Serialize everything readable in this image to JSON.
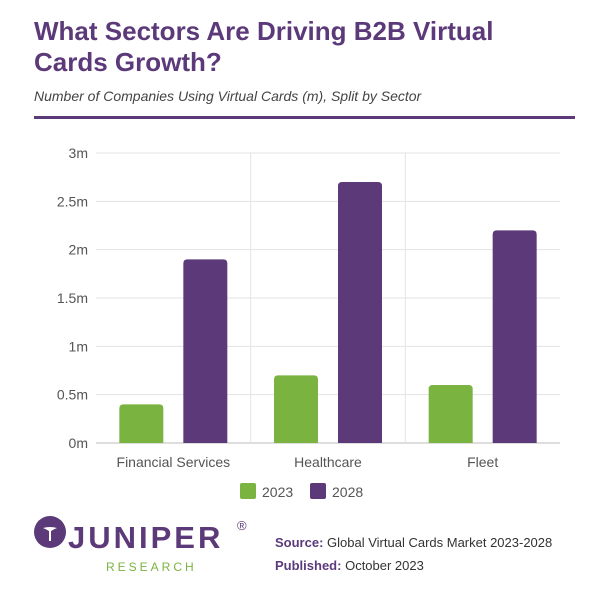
{
  "chart_data": {
    "type": "bar",
    "title": "What Sectors Are Driving B2B Virtual Cards Growth?",
    "subtitle": "Number of Companies Using Virtual Cards (m), Split by Sector",
    "categories": [
      "Financial Services",
      "Healthcare",
      "Fleet"
    ],
    "series": [
      {
        "name": "2023",
        "values": [
          0.4,
          0.7,
          0.6
        ],
        "color": "#7ab33f"
      },
      {
        "name": "2028",
        "values": [
          1.9,
          2.7,
          2.2
        ],
        "color": "#5c3a7a"
      }
    ],
    "ylim": [
      0,
      3
    ],
    "yticks": [
      0,
      0.5,
      1,
      1.5,
      2,
      2.5,
      3
    ],
    "ytick_labels": [
      "0m",
      "0.5m",
      "1m",
      "1.5m",
      "2m",
      "2.5m",
      "3m"
    ],
    "xlabel": "",
    "ylabel": "",
    "grid": true,
    "legend_position": "bottom"
  },
  "logo": {
    "word": "JUNIPER",
    "sub": "RESEARCH",
    "reg": "®"
  },
  "footer": {
    "source_label": "Source:",
    "source_text": "Global Virtual Cards Market 2023-2028",
    "published_label": "Published:",
    "published_text": "October 2023"
  }
}
